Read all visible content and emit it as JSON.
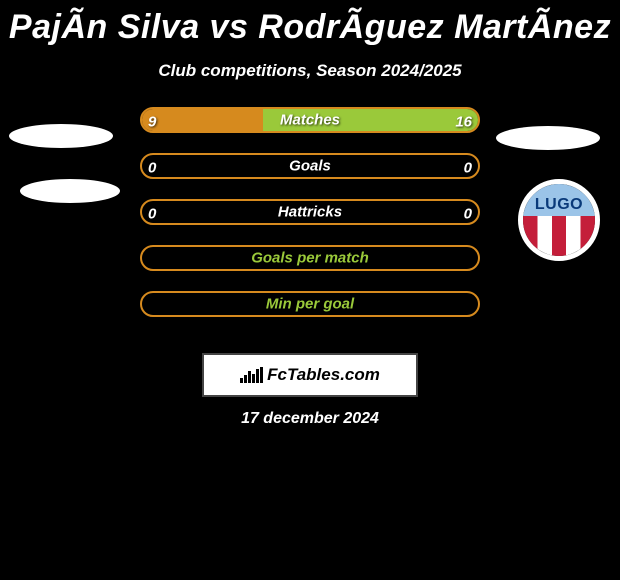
{
  "title": "PajÃ­n Silva vs RodrÃ­guez MartÃ­nez",
  "subtitle": "Club competitions, Season 2024/2025",
  "colors": {
    "left": "#d68a1e",
    "right": "#9ac93a",
    "bar_border": "#d68a1e",
    "label_green": "#9ac93a"
  },
  "rows": [
    {
      "label": "Matches",
      "left_val": "9",
      "right_val": "16",
      "left_pct": 36,
      "right_pct": 64,
      "show_values": true
    },
    {
      "label": "Goals",
      "left_val": "0",
      "right_val": "0",
      "left_pct": 0,
      "right_pct": 0,
      "show_values": true
    },
    {
      "label": "Hattricks",
      "left_val": "0",
      "right_val": "0",
      "left_pct": 0,
      "right_pct": 0,
      "show_values": true
    },
    {
      "label": "Goals per match",
      "left_val": "",
      "right_val": "",
      "left_pct": 0,
      "right_pct": 0,
      "show_values": false
    },
    {
      "label": "Min per goal",
      "left_val": "",
      "right_val": "",
      "left_pct": 0,
      "right_pct": 0,
      "show_values": false
    }
  ],
  "crest": {
    "text": "LUGO"
  },
  "branding": "FcTables.com",
  "date": "17 december 2024"
}
